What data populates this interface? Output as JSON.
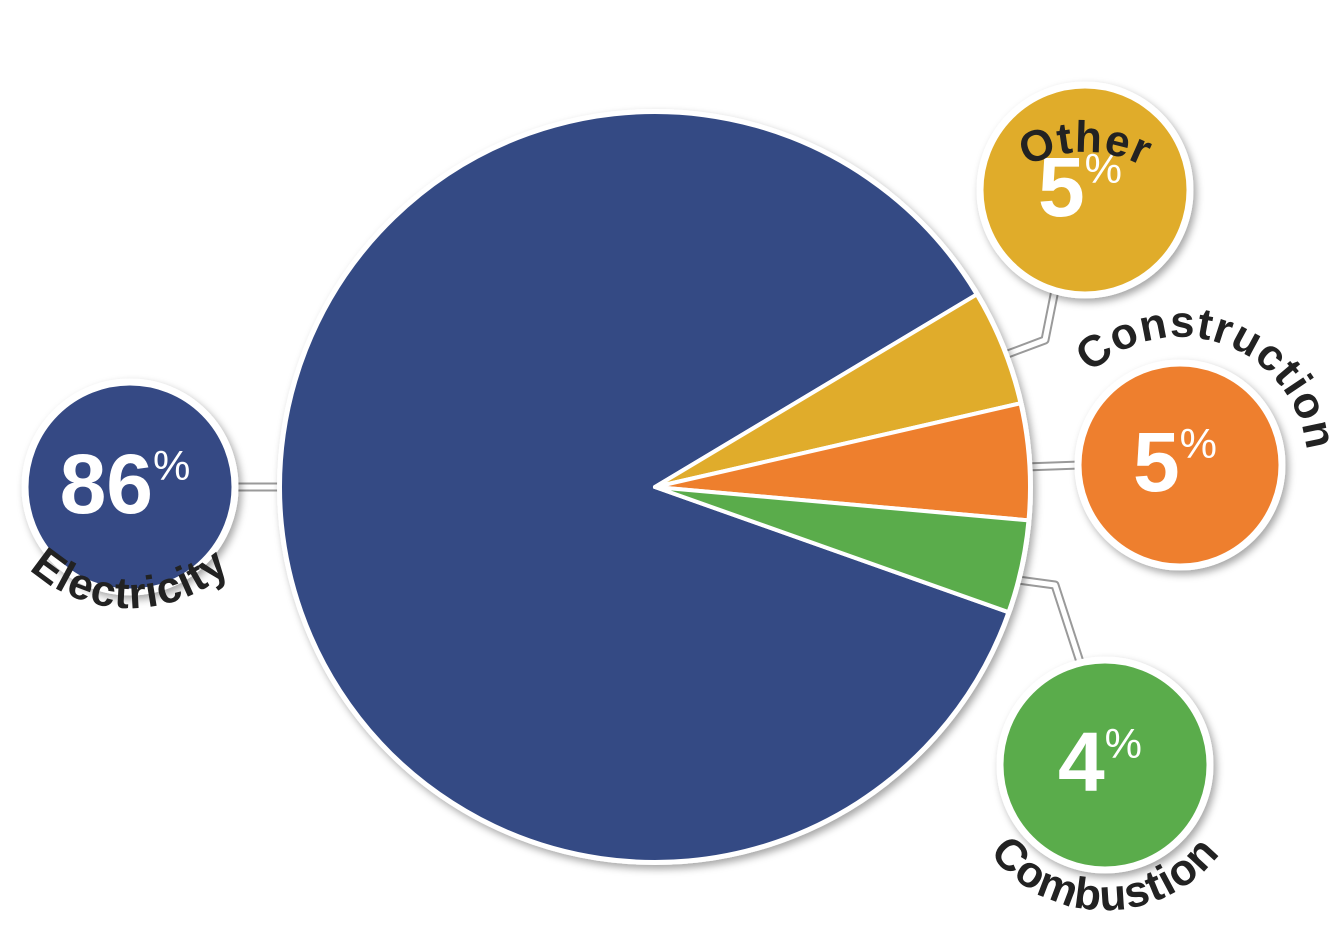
{
  "chart_data": {
    "type": "pie",
    "categories": [
      "Electricity",
      "Other",
      "Construction",
      "Combustion"
    ],
    "values": [
      86,
      5,
      5,
      4
    ],
    "value_labels": [
      "86%",
      "5%",
      "5%",
      "4%"
    ],
    "colors": [
      "#344a84",
      "#e0ac2b",
      "#ee7f2d",
      "#5aac4b"
    ]
  }
}
